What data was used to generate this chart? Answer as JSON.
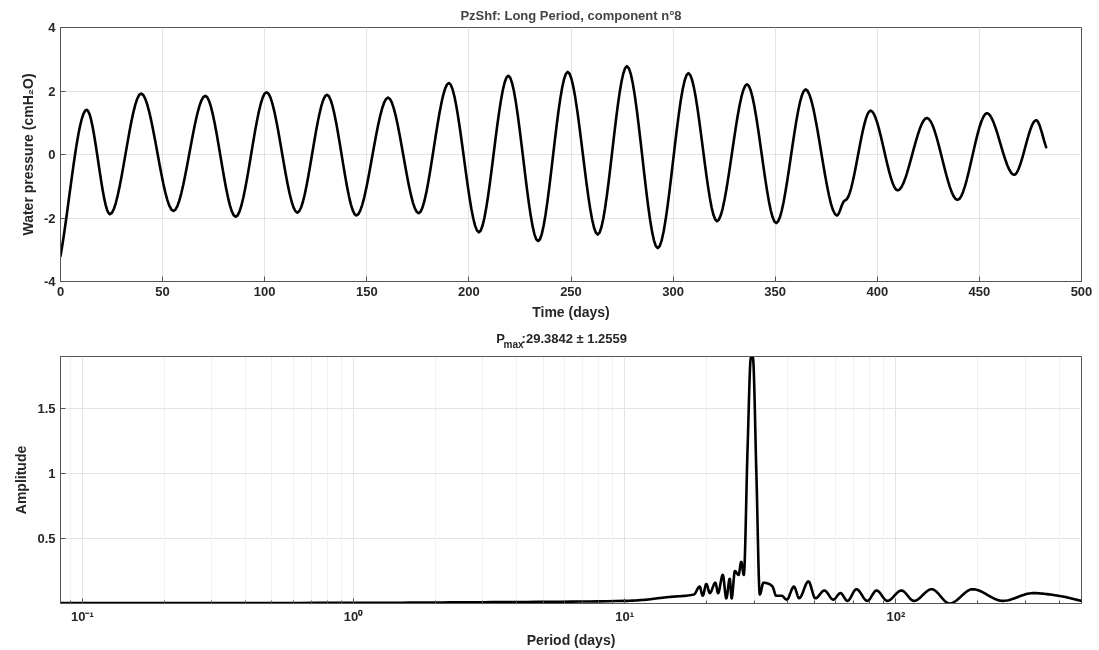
{
  "chart_data": [
    {
      "type": "line",
      "title": "PzShf: Long Period, component n°8",
      "xlabel": "Time (days)",
      "ylabel": "Water pressure (cmH₂O)",
      "xlim": [
        0,
        500
      ],
      "ylim": [
        -4,
        4
      ],
      "xticks": [
        0,
        50,
        100,
        150,
        200,
        250,
        300,
        350,
        400,
        450,
        500
      ],
      "yticks": [
        -4,
        -2,
        0,
        2,
        4
      ],
      "grid": true,
      "series": [
        {
          "color": "#000000",
          "x": [
            0,
            12.8,
            24.2,
            39.5,
            55.3,
            70.9,
            85.8,
            100.9,
            116,
            130.5,
            144.9,
            160.4,
            175.4,
            190.2,
            204.9,
            219.3,
            233.9,
            248.4,
            263.1,
            277.4,
            292.5,
            307.5,
            321.5,
            336.2,
            350.5,
            364.9,
            380.2,
            383.7,
            385,
            396.7,
            410,
            424.3,
            439.3,
            453.7,
            467,
            477.8,
            482.7
          ],
          "values": [
            -3.2,
            1.41,
            -1.88,
            1.92,
            -1.78,
            1.85,
            -1.96,
            1.96,
            -1.83,
            1.88,
            -1.92,
            1.79,
            -1.85,
            2.25,
            -2.45,
            2.48,
            -2.73,
            2.6,
            -2.52,
            2.78,
            -2.95,
            2.56,
            -2.1,
            2.21,
            -2.16,
            2.05,
            -1.92,
            -1.47,
            -1.41,
            1.38,
            -1.13,
            1.15,
            -1.43,
            1.3,
            -0.64,
            1.08,
            0.23
          ]
        }
      ]
    },
    {
      "type": "line",
      "title": "P$_{max}$:29.3842 ± 1.2559",
      "xlabel": "Period (days)",
      "ylabel": "Amplitude",
      "log": "x",
      "xlim": [
        0.083,
        484
      ],
      "ylim": [
        0,
        1.9
      ],
      "xticks": [
        {
          "value": 0.1,
          "label": "10⁻¹"
        },
        {
          "value": 1,
          "label": "10⁰"
        },
        {
          "value": 10,
          "label": "10¹"
        },
        {
          "value": 100,
          "label": "10²"
        }
      ],
      "yticks": [
        0.5,
        1,
        1.5
      ],
      "grid": true,
      "series": [
        {
          "color": "#000000",
          "x": [
            0.083,
            1,
            3,
            10,
            12.1,
            13.2,
            14.6,
            18.0,
            18.9,
            19.4,
            20.0,
            20.6,
            21.6,
            22.1,
            23.0,
            23.7,
            24.4,
            24.8,
            25.5,
            26.3,
            26.9,
            27.5,
            28.4,
            29.2,
            29.7,
            30.6,
            31.5,
            32.5,
            34.1,
            35.1,
            36.2,
            37.9,
            39.6,
            42.1,
            44.0,
            47.6,
            50.5,
            54.5,
            58.8,
            62.5,
            66.3,
            71.6,
            78.5,
            84.9,
            93.1,
            104.9,
            116.6,
            135.6,
            157.8,
            192,
            247.8,
            320.8,
            397,
            484
          ],
          "values": [
            0.003,
            0.005,
            0.01,
            0.02,
            0.03,
            0.04,
            0.05,
            0.07,
            0.13,
            0.06,
            0.15,
            0.08,
            0.16,
            0.08,
            0.22,
            0.04,
            0.19,
            0.04,
            0.25,
            0.22,
            0.32,
            0.22,
            1.2,
            1.89,
            1.89,
            1.0,
            0.07,
            0.16,
            0.15,
            0.13,
            0.06,
            0.06,
            0.03,
            0.13,
            0.04,
            0.17,
            0.04,
            0.1,
            0.03,
            0.08,
            0.02,
            0.11,
            0.02,
            0.1,
            0.02,
            0.1,
            0.02,
            0.11,
            0.0,
            0.11,
            0.02,
            0.08,
            0.06,
            0.02
          ]
        }
      ]
    }
  ]
}
